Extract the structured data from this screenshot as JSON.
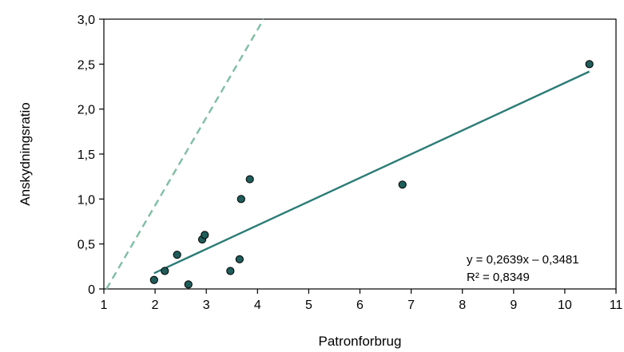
{
  "chart_data": {
    "type": "scatter",
    "title": "",
    "xlabel": "Patronforbrug",
    "ylabel": "Anskydningsratio",
    "xlim": [
      1,
      11
    ],
    "ylim": [
      0,
      3.0
    ],
    "xticks": [
      1,
      2,
      3,
      4,
      5,
      6,
      7,
      8,
      9,
      10,
      11
    ],
    "xtick_labels": [
      "1",
      "2",
      "3",
      "4",
      "5",
      "6",
      "7",
      "8",
      "9",
      "10",
      "11"
    ],
    "yticks": [
      0,
      0.5,
      1.0,
      1.5,
      2.0,
      2.5,
      3.0
    ],
    "ytick_labels": [
      "0",
      "0,5",
      "1,0",
      "1,5",
      "2,0",
      "2,5",
      "3,0"
    ],
    "grid": false,
    "points": [
      {
        "x": 1.98,
        "y": 0.1
      },
      {
        "x": 2.19,
        "y": 0.2
      },
      {
        "x": 2.43,
        "y": 0.38
      },
      {
        "x": 2.65,
        "y": 0.05
      },
      {
        "x": 2.92,
        "y": 0.55
      },
      {
        "x": 2.97,
        "y": 0.6
      },
      {
        "x": 3.47,
        "y": 0.2
      },
      {
        "x": 3.65,
        "y": 0.33
      },
      {
        "x": 3.68,
        "y": 1.0
      },
      {
        "x": 3.85,
        "y": 1.22
      },
      {
        "x": 6.83,
        "y": 1.16
      },
      {
        "x": 10.48,
        "y": 2.5
      }
    ],
    "trendline": {
      "slope": 0.2639,
      "intercept": -0.3481,
      "x_start": 1.98,
      "x_end": 10.48,
      "color": "#2a7b76"
    },
    "reference_line": {
      "style": "dashed",
      "color": "#7fbea2",
      "x_start": 1.05,
      "y_start": 0,
      "x_end": 4.12,
      "y_end": 3.0
    },
    "point_color": "#1f5c5a",
    "point_outline": "#000000",
    "annotations": {
      "equation": "y = 0,2639x – 0,3481",
      "r_squared": "R² = 0,8349"
    }
  }
}
